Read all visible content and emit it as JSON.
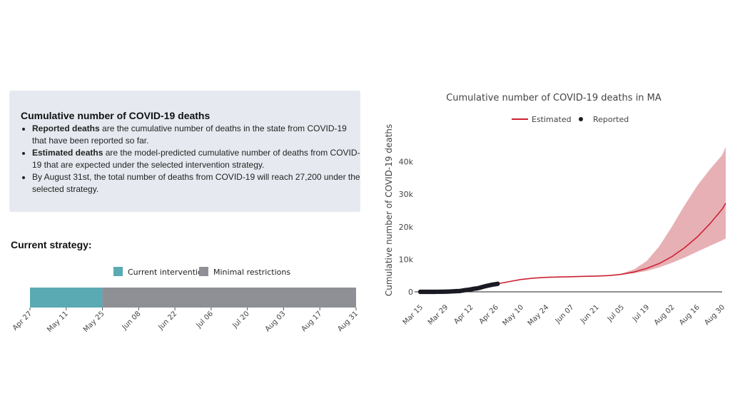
{
  "info": {
    "title": "Cumulative number of COVID-19 deaths",
    "bullets": [
      {
        "bold": "Reported deaths",
        "text": " are the cumulative number of deaths in the state from COVID-19 that have been reported so far."
      },
      {
        "bold": "Estimated deaths",
        "text": " are the model-predicted cumulative number of deaths from COVID-19 that are expected under the selected intervention strategy."
      },
      {
        "bold": "",
        "text": "By August 31st, the total number of deaths from COVID-19 will reach 27,200 under the selected strategy."
      }
    ]
  },
  "strategy": {
    "heading": "Current strategy:",
    "legend": [
      {
        "label": "Current intervention",
        "color": "#5aaab3"
      },
      {
        "label": "Minimal restrictions",
        "color": "#8e9096"
      }
    ],
    "segments": [
      {
        "label": "Current intervention",
        "start": "2020-04-27",
        "end": "2020-05-25",
        "color": "#5aaab3"
      },
      {
        "label": "Minimal restrictions",
        "start": "2020-05-25",
        "end": "2020-08-31",
        "color": "#8e9096"
      }
    ],
    "ticks": [
      "Apr 27",
      "May 11",
      "May 25",
      "Jun 08",
      "Jun 22",
      "Jul 06",
      "Jul 20",
      "Aug 03",
      "Aug 17",
      "Aug 31"
    ]
  },
  "chart_data": {
    "type": "line",
    "title": "Cumulative number of COVID-19 deaths in MA",
    "xlabel": "",
    "ylabel": "Cumulative number of COVID-19 deaths",
    "ylim": [
      0,
      48000
    ],
    "yticks": [
      0,
      10000,
      20000,
      30000,
      40000
    ],
    "ytick_labels": [
      "0",
      "10k",
      "20k",
      "30k",
      "40k"
    ],
    "xticks": [
      "2020-03-15",
      "2020-03-29",
      "2020-04-12",
      "2020-04-26",
      "2020-05-10",
      "2020-05-24",
      "2020-06-07",
      "2020-06-21",
      "2020-07-05",
      "2020-07-19",
      "2020-08-02",
      "2020-08-16",
      "2020-08-30"
    ],
    "xtick_labels": [
      "Mar 15",
      "Mar 29",
      "Apr 12",
      "Apr 26",
      "May 10",
      "May 24",
      "Jun 07",
      "Jun 21",
      "Jul 05",
      "Jul 19",
      "Aug 02",
      "Aug 16",
      "Aug 30"
    ],
    "legend_position": "top",
    "grid": false,
    "series": [
      {
        "name": "Estimated",
        "color": "#cc2233",
        "x": [
          "2020-04-20",
          "2020-04-26",
          "2020-05-03",
          "2020-05-10",
          "2020-05-17",
          "2020-05-24",
          "2020-05-31",
          "2020-06-07",
          "2020-06-14",
          "2020-06-21",
          "2020-06-28",
          "2020-07-05",
          "2020-07-12",
          "2020-07-19",
          "2020-07-26",
          "2020-08-02",
          "2020-08-09",
          "2020-08-16",
          "2020-08-23",
          "2020-08-30",
          "2020-09-01"
        ],
        "y": [
          1900,
          2400,
          3100,
          3800,
          4200,
          4450,
          4550,
          4650,
          4750,
          4850,
          5000,
          5400,
          6100,
          7200,
          8700,
          10800,
          13500,
          16800,
          20800,
          25400,
          27200
        ],
        "band_low": [
          1900,
          2400,
          3100,
          3800,
          4200,
          4450,
          4550,
          4650,
          4750,
          4850,
          5000,
          5300,
          5700,
          6400,
          7500,
          8900,
          10500,
          12300,
          14100,
          15800,
          16400
        ],
        "band_high": [
          1900,
          2400,
          3100,
          3800,
          4200,
          4450,
          4550,
          4650,
          4750,
          4850,
          5000,
          5600,
          6900,
          9500,
          14000,
          20000,
          26500,
          32500,
          37500,
          42000,
          44500
        ],
        "band_color": "#e3a2a8"
      },
      {
        "name": "Reported",
        "color": "#1a1a24",
        "x": [
          "2020-03-15",
          "2020-03-17",
          "2020-03-19",
          "2020-03-21",
          "2020-03-23",
          "2020-03-25",
          "2020-03-27",
          "2020-03-29",
          "2020-03-31",
          "2020-04-02",
          "2020-04-04",
          "2020-04-06",
          "2020-04-08",
          "2020-04-10",
          "2020-04-12",
          "2020-04-14",
          "2020-04-16",
          "2020-04-18",
          "2020-04-20",
          "2020-04-22",
          "2020-04-24",
          "2020-04-26",
          "2020-04-27"
        ],
        "y": [
          0,
          0,
          1,
          5,
          9,
          25,
          44,
          56,
          89,
          154,
          216,
          260,
          433,
          599,
          756,
          957,
          1108,
          1404,
          1706,
          1961,
          2182,
          2360,
          2480
        ]
      }
    ]
  }
}
